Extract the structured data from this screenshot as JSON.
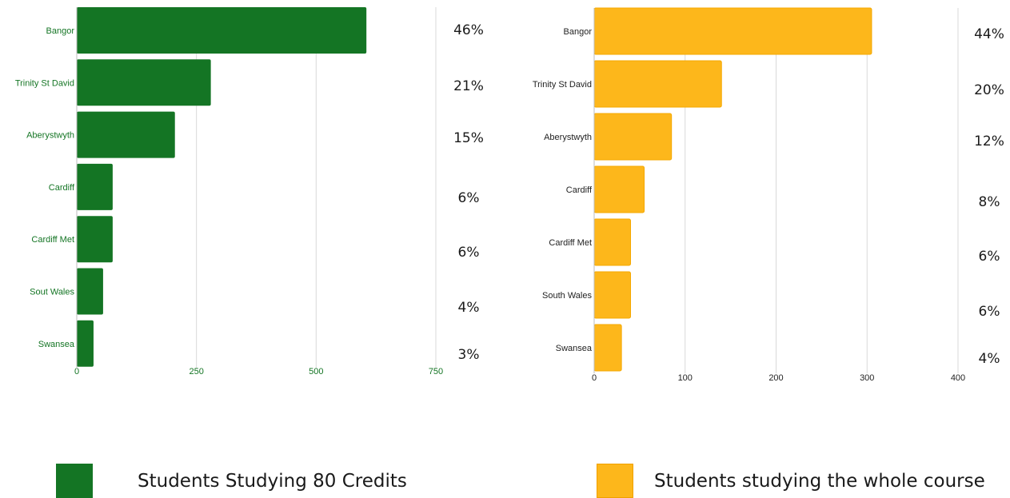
{
  "chart_data": [
    {
      "type": "bar",
      "orientation": "horizontal",
      "categories": [
        "Bangor",
        "Trinity St David",
        "Aberystwyth",
        "Cardiff",
        "Cardiff Met",
        "Sout Wales",
        "Swansea"
      ],
      "values": [
        605,
        280,
        205,
        75,
        75,
        55,
        35
      ],
      "percent_labels": [
        "46%",
        "21%",
        "15%",
        "6%",
        "6%",
        "4%",
        "3%"
      ],
      "xlim": [
        0,
        750
      ],
      "xticks": [
        "0",
        "250",
        "500",
        "750"
      ],
      "grid": true,
      "color": "#147524",
      "legend_label": "Students Studying 80 Credits"
    },
    {
      "type": "bar",
      "orientation": "horizontal",
      "categories": [
        "Bangor",
        "Trinity St David",
        "Aberystwyth",
        "Cardiff",
        "Cardiff Met",
        "South Wales",
        "Swansea"
      ],
      "values": [
        305,
        140,
        85,
        55,
        40,
        40,
        30
      ],
      "percent_labels": [
        "44%",
        "20%",
        "12%",
        "8%",
        "6%",
        "6%",
        "4%"
      ],
      "xlim": [
        0,
        400
      ],
      "xticks": [
        "0",
        "100",
        "200",
        "300",
        "400"
      ],
      "grid": true,
      "color": "#FDB71B",
      "legend_label": "Students studying the whole course"
    }
  ]
}
